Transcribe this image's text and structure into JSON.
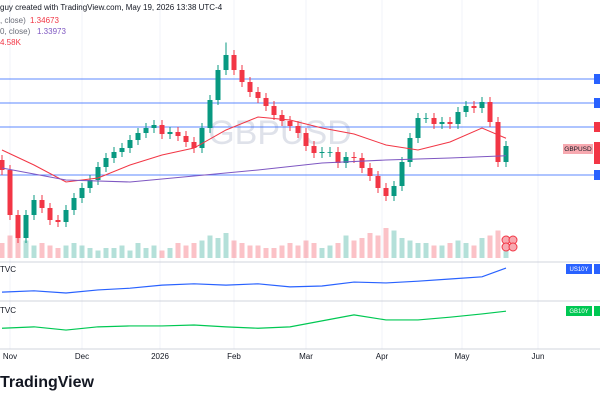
{
  "header": "guy created with TradingView.com, May 19, 2026 13:38 UTC-4",
  "volume_label": "4.58K",
  "logo": "TradingView",
  "chart_data": [
    {
      "type": "candlestick",
      "title": "GBPUSD",
      "xlim": [
        -0.25,
        74.75
      ],
      "xticks": [
        {
          "value": 1,
          "label": "Nov"
        },
        {
          "value": 10,
          "label": "Dec"
        },
        {
          "value": 19.75,
          "label": "2026"
        },
        {
          "value": 29,
          "label": "Feb"
        },
        {
          "value": 38,
          "label": "Mar"
        },
        {
          "value": 47.5,
          "label": "Apr"
        },
        {
          "value": 57.5,
          "label": "May"
        },
        {
          "value": 67,
          "label": "Jun"
        }
      ],
      "ylim": [
        1.3,
        1.39
      ],
      "up_color": "#089981",
      "down_color": "#f23645",
      "open": [
        1.338,
        1.334,
        1.316,
        1.3068,
        1.316,
        1.322,
        1.3188,
        1.314,
        1.3132,
        1.318,
        1.3228,
        1.3268,
        1.33,
        1.3352,
        1.3388,
        1.3412,
        1.3428,
        1.346,
        1.3488,
        1.3508,
        1.352,
        1.3484,
        1.3492,
        1.3476,
        1.3452,
        1.3428,
        1.3508,
        1.362,
        1.374,
        1.38,
        1.374,
        1.3692,
        1.3652,
        1.3628,
        1.3596,
        1.356,
        1.3536,
        1.3516,
        1.3488,
        1.3436,
        1.3408,
        1.3412,
        1.3412,
        1.3368,
        1.3392,
        1.3388,
        1.3348,
        1.3316,
        1.3268,
        1.3236,
        1.3276,
        1.3372,
        1.3468,
        1.3548,
        1.3548,
        1.3524,
        1.3532,
        1.3524,
        1.3572,
        1.3596,
        1.3588,
        1.3612,
        1.3532,
        1.3372
      ],
      "high": [
        1.34,
        1.336,
        1.318,
        1.318,
        1.324,
        1.324,
        1.3208,
        1.316,
        1.32,
        1.3248,
        1.3288,
        1.332,
        1.3372,
        1.3408,
        1.3432,
        1.3448,
        1.348,
        1.3508,
        1.3528,
        1.354,
        1.354,
        1.3512,
        1.3512,
        1.3496,
        1.3472,
        1.3528,
        1.364,
        1.376,
        1.385,
        1.382,
        1.376,
        1.3712,
        1.3672,
        1.3648,
        1.3616,
        1.358,
        1.3556,
        1.3536,
        1.3508,
        1.3456,
        1.3432,
        1.3432,
        1.3432,
        1.3412,
        1.3412,
        1.3408,
        1.3368,
        1.3336,
        1.3288,
        1.3296,
        1.3392,
        1.3488,
        1.3568,
        1.3568,
        1.3568,
        1.3552,
        1.3552,
        1.3592,
        1.3616,
        1.3616,
        1.3632,
        1.3632,
        1.3552,
        1.3456
      ],
      "low": [
        1.332,
        1.314,
        1.3048,
        1.3048,
        1.314,
        1.3168,
        1.312,
        1.3112,
        1.3112,
        1.316,
        1.3208,
        1.3248,
        1.328,
        1.3332,
        1.3368,
        1.3392,
        1.3408,
        1.344,
        1.3468,
        1.3488,
        1.3464,
        1.3464,
        1.3456,
        1.3432,
        1.3408,
        1.3408,
        1.3488,
        1.36,
        1.372,
        1.372,
        1.3672,
        1.3632,
        1.3608,
        1.3576,
        1.354,
        1.3516,
        1.3496,
        1.3468,
        1.3416,
        1.3388,
        1.3388,
        1.3392,
        1.3348,
        1.3348,
        1.3368,
        1.3328,
        1.3296,
        1.3248,
        1.3216,
        1.3216,
        1.3256,
        1.3352,
        1.3448,
        1.3528,
        1.3504,
        1.3504,
        1.3504,
        1.3504,
        1.3552,
        1.3568,
        1.3568,
        1.3512,
        1.3352,
        1.3352
      ],
      "close": [
        1.334,
        1.316,
        1.3068,
        1.316,
        1.322,
        1.3188,
        1.314,
        1.3132,
        1.318,
        1.3228,
        1.3268,
        1.33,
        1.3352,
        1.3388,
        1.3412,
        1.3428,
        1.346,
        1.3488,
        1.3508,
        1.352,
        1.3484,
        1.3492,
        1.3476,
        1.3452,
        1.3428,
        1.3508,
        1.362,
        1.374,
        1.38,
        1.374,
        1.3692,
        1.3652,
        1.3628,
        1.3596,
        1.356,
        1.3536,
        1.3516,
        1.3488,
        1.3436,
        1.3408,
        1.3412,
        1.3412,
        1.3368,
        1.3392,
        1.3388,
        1.3348,
        1.3316,
        1.3268,
        1.3236,
        1.3276,
        1.3372,
        1.3468,
        1.3548,
        1.3548,
        1.3524,
        1.3532,
        1.3524,
        1.3572,
        1.3596,
        1.3588,
        1.3612,
        1.3532,
        1.3372,
        1.3436
      ],
      "volume": [
        6,
        9,
        8,
        7,
        5,
        6,
        5,
        4,
        5,
        6,
        5,
        4,
        3,
        4,
        4,
        5,
        3,
        6,
        4,
        5,
        3,
        4,
        6,
        5,
        6,
        7,
        9,
        8,
        10,
        7,
        6,
        5,
        5,
        4,
        4,
        5,
        6,
        5,
        7,
        6,
        4,
        5,
        6,
        9,
        7,
        8,
        10,
        9,
        12,
        11,
        8,
        7,
        6,
        6,
        5,
        5,
        6,
        7,
        6,
        5,
        8,
        9,
        11,
        4.58
      ],
      "vlim": [
        0,
        20
      ],
      "hlines": {
        "color": "#2962ff",
        "values": [
          1.3704,
          1.3608,
          1.3512,
          1.332
        ]
      },
      "series": [
        {
          "name": ", close)",
          "value": 1.34673,
          "color": "#f23645",
          "x": [
            0,
            4,
            8,
            12,
            16,
            20,
            24,
            28,
            32,
            36,
            40,
            44,
            48,
            52,
            56,
            60,
            63
          ],
          "values": [
            1.342,
            1.336,
            1.3292,
            1.3308,
            1.336,
            1.34,
            1.3428,
            1.35,
            1.3552,
            1.354,
            1.3508,
            1.3484,
            1.344,
            1.342,
            1.3452,
            1.3508,
            1.3467
          ]
        },
        {
          "name": "0, close)",
          "value": 1.33973,
          "color": "#7e57c2",
          "x": [
            0,
            8,
            16,
            24,
            32,
            40,
            48,
            56,
            63
          ],
          "values": [
            1.3348,
            1.33,
            1.3292,
            1.3316,
            1.334,
            1.3368,
            1.338,
            1.3388,
            1.3397
          ]
        }
      ]
    },
    {
      "type": "line",
      "source": "TVC",
      "name": "US10Y",
      "color": "#2962ff",
      "x": [
        0,
        4,
        8,
        12,
        16,
        20,
        24,
        28,
        32,
        36,
        40,
        44,
        48,
        52,
        56,
        60,
        63
      ],
      "values": [
        4.08,
        4.11,
        4.06,
        4.13,
        4.17,
        4.24,
        4.27,
        4.24,
        4.27,
        4.2,
        4.22,
        4.31,
        4.29,
        4.33,
        4.38,
        4.43,
        4.63
      ],
      "ylim": [
        3.9,
        4.7
      ]
    },
    {
      "type": "line",
      "source": "TVC",
      "name": "GB10Y",
      "color": "#00c853",
      "x": [
        0,
        4,
        8,
        12,
        16,
        20,
        24,
        28,
        32,
        36,
        40,
        44,
        48,
        52,
        56,
        60,
        63
      ],
      "values": [
        4.63,
        4.66,
        4.59,
        4.66,
        4.68,
        4.68,
        4.7,
        4.66,
        4.63,
        4.66,
        4.79,
        4.92,
        4.81,
        4.81,
        4.87,
        4.94,
        5.0
      ],
      "ylim": [
        4.2,
        5.2
      ]
    }
  ]
}
